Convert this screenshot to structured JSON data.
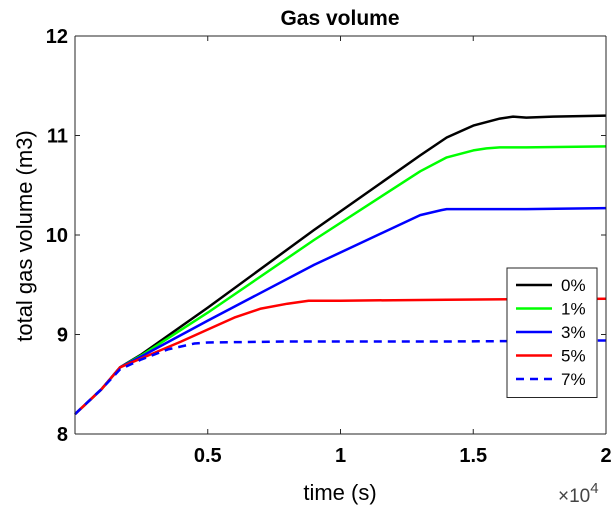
{
  "chart_data": {
    "type": "line",
    "title": "Gas volume",
    "xlabel": "time (s)",
    "ylabel": "total gas volume (m3)",
    "x_multiplier": "×10",
    "x_multiplier_exp": "4",
    "xlim": [
      0,
      20000
    ],
    "ylim": [
      8,
      12
    ],
    "xticks": [
      {
        "value": 5000,
        "label": "0.5"
      },
      {
        "value": 10000,
        "label": "1"
      },
      {
        "value": 15000,
        "label": "1.5"
      },
      {
        "value": 20000,
        "label": "2"
      }
    ],
    "yticks": [
      {
        "value": 8,
        "label": "8"
      },
      {
        "value": 9,
        "label": "9"
      },
      {
        "value": 10,
        "label": "10"
      },
      {
        "value": 11,
        "label": "11"
      },
      {
        "value": 12,
        "label": "12"
      }
    ],
    "grid": false,
    "legend_position": "right",
    "series": [
      {
        "name": "0%",
        "color": "#000000",
        "dash": "solid",
        "x": [
          0,
          1000,
          1700,
          2500,
          5000,
          9000,
          13000,
          14000,
          15000,
          16000,
          16500,
          17000,
          18000,
          20000
        ],
        "y": [
          8.2,
          8.45,
          8.67,
          8.8,
          9.27,
          10.05,
          10.8,
          10.98,
          11.1,
          11.17,
          11.19,
          11.18,
          11.19,
          11.2
        ]
      },
      {
        "name": "1%",
        "color": "#00ff00",
        "dash": "solid",
        "x": [
          0,
          1000,
          1700,
          2500,
          5000,
          9000,
          13000,
          14000,
          15000,
          15500,
          16000,
          17000,
          20000
        ],
        "y": [
          8.2,
          8.45,
          8.67,
          8.79,
          9.22,
          9.95,
          10.64,
          10.78,
          10.85,
          10.87,
          10.88,
          10.88,
          10.89
        ]
      },
      {
        "name": "3%",
        "color": "#0000ff",
        "dash": "solid",
        "x": [
          0,
          1000,
          1700,
          2500,
          5000,
          9000,
          13000,
          13800,
          14000,
          14500,
          15000,
          17000,
          20000
        ],
        "y": [
          8.2,
          8.45,
          8.67,
          8.78,
          9.14,
          9.7,
          10.2,
          10.25,
          10.26,
          10.26,
          10.26,
          10.26,
          10.27
        ]
      },
      {
        "name": "5%",
        "color": "#ff0000",
        "dash": "solid",
        "x": [
          0,
          1000,
          1700,
          2500,
          4000,
          5000,
          6000,
          7000,
          8000,
          8800,
          9000,
          10000,
          14000,
          20000
        ],
        "y": [
          8.2,
          8.45,
          8.67,
          8.76,
          8.93,
          9.05,
          9.17,
          9.26,
          9.31,
          9.34,
          9.34,
          9.34,
          9.35,
          9.36
        ]
      },
      {
        "name": "7%",
        "color": "#0000ff",
        "dash": "dashed",
        "x": [
          0,
          1000,
          1700,
          2500,
          3500,
          4500,
          5000,
          8000,
          14000,
          20000
        ],
        "y": [
          8.2,
          8.45,
          8.65,
          8.75,
          8.85,
          8.91,
          8.92,
          8.93,
          8.93,
          8.94
        ]
      }
    ]
  }
}
